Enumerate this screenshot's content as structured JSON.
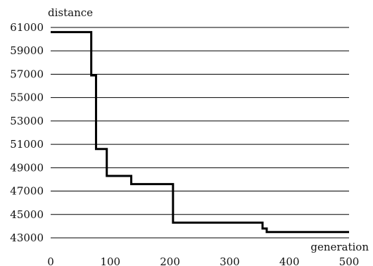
{
  "chart_data": {
    "type": "line",
    "xlabel": "generation",
    "ylabel": "distance",
    "xlim": [
      0,
      500
    ],
    "ylim": [
      43000,
      61000
    ],
    "x_ticks": [
      0,
      100,
      200,
      300,
      400,
      500
    ],
    "y_ticks": [
      43000,
      45000,
      47000,
      49000,
      51000,
      53000,
      55000,
      57000,
      59000,
      61000
    ],
    "grid": "horizontal",
    "step": "post",
    "series": [
      {
        "color": "#000000",
        "x": [
          0,
          68,
          76,
          94,
          135,
          205,
          355,
          362,
          500
        ],
        "y": [
          60600,
          56900,
          50600,
          48300,
          47600,
          44300,
          43800,
          43500,
          43500
        ]
      }
    ]
  }
}
